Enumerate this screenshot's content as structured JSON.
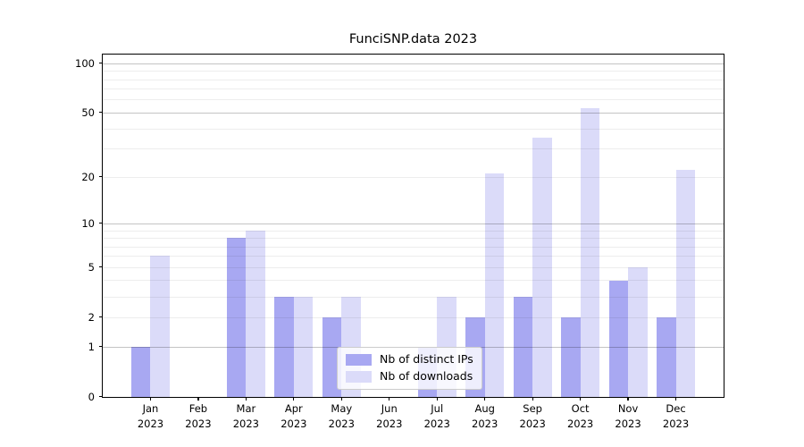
{
  "chart_data": {
    "type": "bar",
    "title": "FunciSNP.data 2023",
    "y_scale": "log1p",
    "ylim": [
      0,
      114
    ],
    "grid": "on",
    "legend_position": "lower center",
    "categories": [
      "Jan 2023",
      "Feb 2023",
      "Mar 2023",
      "Apr 2023",
      "May 2023",
      "Jun 2023",
      "Jul 2023",
      "Aug 2023",
      "Sep 2023",
      "Oct 2023",
      "Nov 2023",
      "Dec 2023"
    ],
    "x_labels": [
      {
        "line1": "Jan",
        "line2": "2023"
      },
      {
        "line1": "Feb",
        "line2": "2023"
      },
      {
        "line1": "Mar",
        "line2": "2023"
      },
      {
        "line1": "Apr",
        "line2": "2023"
      },
      {
        "line1": "May",
        "line2": "2023"
      },
      {
        "line1": "Jun",
        "line2": "2023"
      },
      {
        "line1": "Jul",
        "line2": "2023"
      },
      {
        "line1": "Aug",
        "line2": "2023"
      },
      {
        "line1": "Sep",
        "line2": "2023"
      },
      {
        "line1": "Oct",
        "line2": "2023"
      },
      {
        "line1": "Nov",
        "line2": "2023"
      },
      {
        "line1": "Dec",
        "line2": "2023"
      }
    ],
    "series": [
      {
        "name": "Nb of distinct IPs",
        "color": "#a8a8f2",
        "values": [
          1,
          0,
          8,
          3,
          2,
          0,
          1,
          2,
          3,
          2,
          4,
          2
        ]
      },
      {
        "name": "Nb of downloads",
        "color": "#dbdbf9",
        "values": [
          6,
          0,
          9,
          3,
          3,
          0,
          3,
          21,
          35,
          53,
          5,
          22
        ]
      }
    ],
    "y_ticks": [
      0,
      1,
      2,
      5,
      10,
      20,
      50,
      100
    ],
    "major_gridlines": [
      1,
      10,
      50,
      100
    ],
    "minor_gridlines": [
      2,
      3,
      4,
      5,
      6,
      7,
      8,
      9,
      20,
      30,
      40,
      60,
      70,
      80,
      90
    ]
  }
}
